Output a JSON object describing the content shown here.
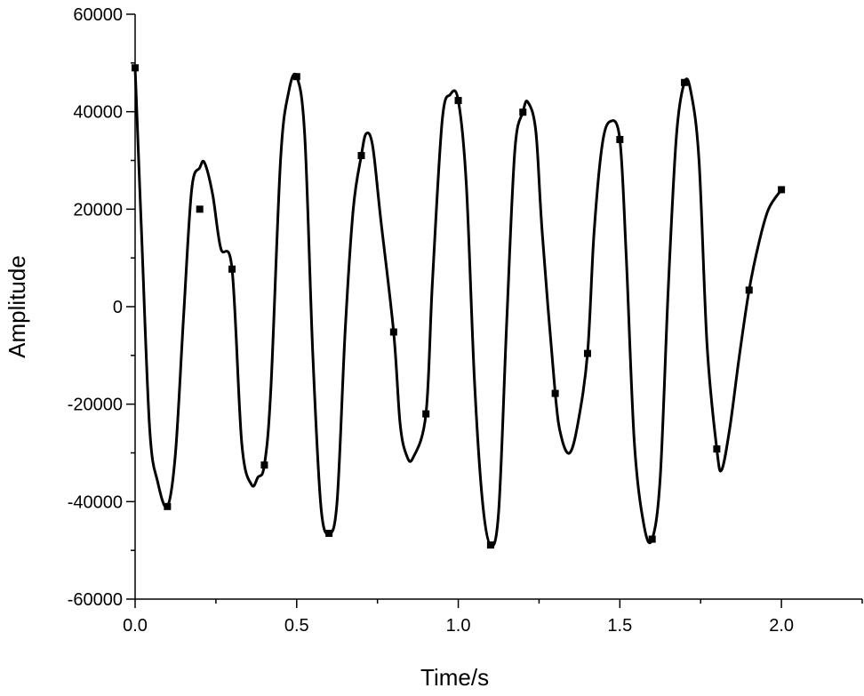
{
  "chart_data": {
    "type": "line",
    "title": "",
    "xlabel": "Time/s",
    "ylabel": "Amplitude",
    "xlim": [
      0,
      2.25
    ],
    "ylim": [
      -60000,
      60000
    ],
    "x_ticks": [
      0.0,
      0.5,
      1.0,
      1.5,
      2.0
    ],
    "x_tick_labels": [
      "0.0",
      "0.5",
      "1.0",
      "1.5",
      "2.0"
    ],
    "y_ticks": [
      -60000,
      -40000,
      -20000,
      0,
      20000,
      40000,
      60000
    ],
    "y_tick_labels": [
      "-60000",
      "-40000",
      "-20000",
      "0",
      "20000",
      "40000",
      "60000"
    ],
    "grid": false,
    "legend": "none",
    "line_color": "#000000",
    "series": [
      {
        "name": "",
        "marker": "square",
        "markers": {
          "x": [
            0.0,
            0.1,
            0.2,
            0.3,
            0.4,
            0.5,
            0.6,
            0.7,
            0.8,
            0.9,
            1.0,
            1.1,
            1.2,
            1.3,
            1.4,
            1.5,
            1.6,
            1.7,
            1.8,
            1.9,
            2.0
          ],
          "y": [
            49000,
            -41000,
            20000,
            7700,
            -32500,
            47200,
            -46500,
            31000,
            -5200,
            -22000,
            42300,
            -48900,
            39900,
            -17800,
            -9600,
            34300,
            -47700,
            46000,
            -29200,
            3400,
            24000
          ]
        },
        "curve": {
          "x": [
            0.0,
            0.02,
            0.045,
            0.07,
            0.1,
            0.125,
            0.15,
            0.175,
            0.2,
            0.215,
            0.24,
            0.265,
            0.3,
            0.33,
            0.36,
            0.38,
            0.4,
            0.42,
            0.45,
            0.475,
            0.5,
            0.525,
            0.55,
            0.575,
            0.6,
            0.625,
            0.65,
            0.675,
            0.7,
            0.715,
            0.735,
            0.76,
            0.8,
            0.82,
            0.84,
            0.86,
            0.9,
            0.92,
            0.95,
            0.975,
            1.0,
            1.025,
            1.05,
            1.075,
            1.1,
            1.125,
            1.15,
            1.175,
            1.2,
            1.215,
            1.24,
            1.26,
            1.3,
            1.32,
            1.345,
            1.37,
            1.4,
            1.42,
            1.445,
            1.47,
            1.5,
            1.52,
            1.545,
            1.575,
            1.6,
            1.625,
            1.65,
            1.675,
            1.7,
            1.72,
            1.745,
            1.77,
            1.8,
            1.815,
            1.84,
            1.87,
            1.9,
            1.93,
            1.96,
            2.0
          ],
          "y": [
            49000,
            15000,
            -25000,
            -36000,
            -41000,
            -30000,
            -2000,
            24000,
            28500,
            29500,
            23000,
            12000,
            7700,
            -28000,
            -36500,
            -35000,
            -32500,
            -17000,
            30000,
            44000,
            47200,
            35000,
            -10000,
            -41000,
            -46500,
            -40000,
            -5000,
            20000,
            31000,
            35500,
            33000,
            18000,
            -5200,
            -24000,
            -30500,
            -31000,
            -22000,
            5000,
            38000,
            43500,
            42300,
            25000,
            -15000,
            -40000,
            -48900,
            -42000,
            -3000,
            32000,
            39900,
            42000,
            36000,
            15000,
            -17800,
            -27000,
            -30000,
            -24000,
            -9600,
            15000,
            33000,
            38000,
            34300,
            10000,
            -28000,
            -45000,
            -47700,
            -35000,
            4000,
            35000,
            46000,
            44000,
            30000,
            -8000,
            -29200,
            -33500,
            -25000,
            -10000,
            3400,
            13000,
            20000,
            24000
          ]
        }
      }
    ]
  }
}
